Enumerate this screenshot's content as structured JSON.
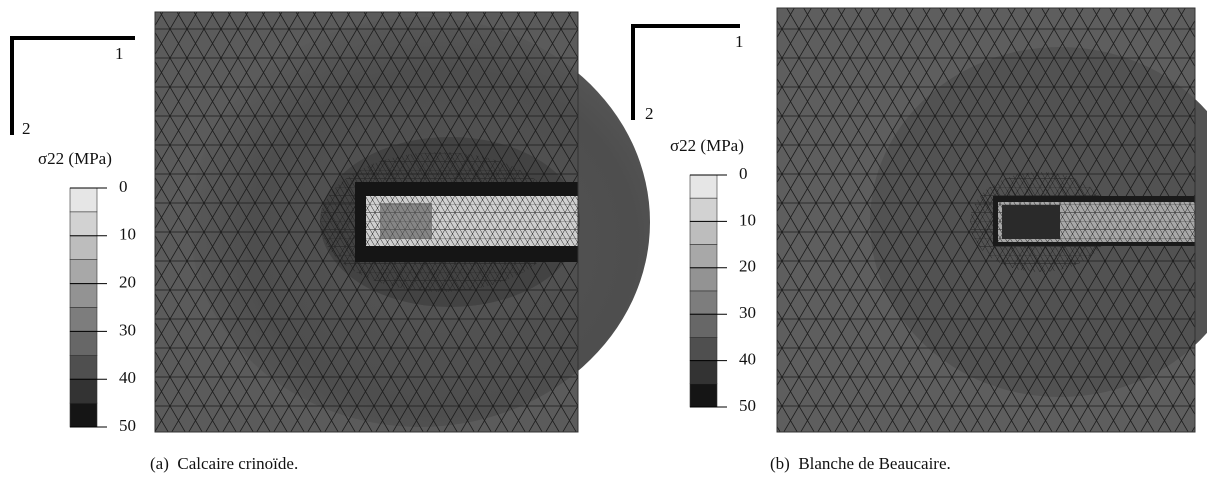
{
  "panels": [
    {
      "axes": {
        "x": "1",
        "y": "2"
      },
      "legend": {
        "title": "σ22 (MPa)",
        "ticks": [
          0,
          10,
          20,
          30,
          40,
          50
        ]
      },
      "caption": "(a)  Calcaire crinoïde."
    },
    {
      "axes": {
        "x": "1",
        "y": "2"
      },
      "legend": {
        "title": "σ22 (MPa)",
        "ticks": [
          0,
          10,
          20,
          30,
          40,
          50
        ]
      },
      "caption": "(b)  Blanche de Beaucaire."
    }
  ]
}
